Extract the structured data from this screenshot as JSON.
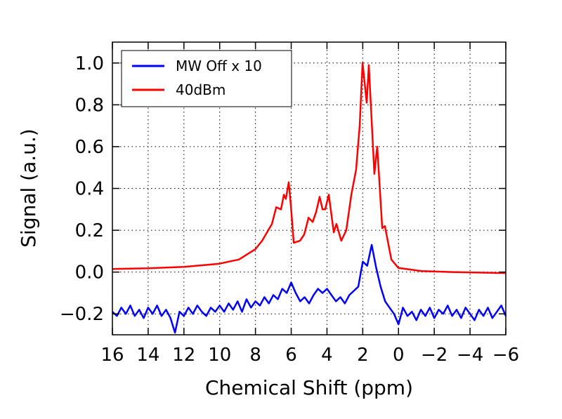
{
  "chart_data": {
    "type": "line",
    "title": "",
    "xlabel": "Chemical Shift (ppm)",
    "ylabel": "Signal (a.u.)",
    "xlim": [
      16,
      -6
    ],
    "ylim": [
      -0.3,
      1.1
    ],
    "x_reversed": true,
    "grid": true,
    "legend_placement": "top-left",
    "xticks": [
      16,
      14,
      12,
      10,
      8,
      6,
      4,
      2,
      0,
      -2,
      -4,
      -6
    ],
    "xtick_labels": [
      "16",
      "14",
      "12",
      "10",
      "8",
      "6",
      "4",
      "2",
      "0",
      "−2",
      "−4",
      "−6"
    ],
    "yticks": [
      -0.2,
      0.0,
      0.2,
      0.4,
      0.6,
      0.8,
      1.0
    ],
    "ytick_labels": [
      "−0.2",
      "0.0",
      "0.2",
      "0.4",
      "0.6",
      "0.8",
      "1.0"
    ],
    "series": [
      {
        "name": "MW Off x 10",
        "color": "#0000ff",
        "x": [
          16,
          15.75,
          15.5,
          15.25,
          15,
          14.75,
          14.5,
          14.25,
          14,
          13.75,
          13.5,
          13.25,
          13,
          12.75,
          12.5,
          12.25,
          12,
          11.75,
          11.5,
          11.25,
          11,
          10.75,
          10.5,
          10.25,
          10,
          9.75,
          9.5,
          9.25,
          9,
          8.75,
          8.5,
          8.25,
          8,
          7.75,
          7.5,
          7.25,
          7,
          6.75,
          6.5,
          6.25,
          6,
          5.75,
          5.5,
          5.25,
          5,
          4.75,
          4.5,
          4.25,
          4,
          3.75,
          3.5,
          3.25,
          3,
          2.75,
          2.5,
          2.25,
          2,
          1.75,
          1.5,
          1.25,
          1,
          0.75,
          0.5,
          0.25,
          0,
          -0.25,
          -0.5,
          -0.75,
          -1,
          -1.25,
          -1.5,
          -1.75,
          -2,
          -2.25,
          -2.5,
          -2.75,
          -3,
          -3.25,
          -3.5,
          -3.75,
          -4,
          -4.25,
          -4.5,
          -4.75,
          -5,
          -5.25,
          -5.5,
          -5.75,
          -6
        ],
        "y": [
          -0.19,
          -0.21,
          -0.17,
          -0.2,
          -0.16,
          -0.21,
          -0.18,
          -0.22,
          -0.17,
          -0.2,
          -0.16,
          -0.21,
          -0.18,
          -0.22,
          -0.29,
          -0.19,
          -0.21,
          -0.17,
          -0.2,
          -0.16,
          -0.19,
          -0.21,
          -0.17,
          -0.19,
          -0.16,
          -0.19,
          -0.15,
          -0.18,
          -0.14,
          -0.19,
          -0.13,
          -0.17,
          -0.14,
          -0.16,
          -0.12,
          -0.15,
          -0.11,
          -0.13,
          -0.08,
          -0.1,
          -0.05,
          -0.1,
          -0.14,
          -0.12,
          -0.15,
          -0.11,
          -0.08,
          -0.1,
          -0.08,
          -0.11,
          -0.14,
          -0.12,
          -0.15,
          -0.11,
          -0.09,
          -0.07,
          0.05,
          0.03,
          0.13,
          0.02,
          -0.07,
          -0.14,
          -0.17,
          -0.2,
          -0.25,
          -0.17,
          -0.21,
          -0.19,
          -0.23,
          -0.18,
          -0.21,
          -0.17,
          -0.22,
          -0.18,
          -0.2,
          -0.16,
          -0.21,
          -0.18,
          -0.22,
          -0.17,
          -0.2,
          -0.23,
          -0.18,
          -0.21,
          -0.17,
          -0.22,
          -0.19,
          -0.16,
          -0.21
        ]
      },
      {
        "name": "40dBm",
        "color": "#ff0000",
        "x": [
          16,
          14,
          12,
          10,
          9.5,
          8.93,
          8.0,
          7.63,
          7.08,
          6.84,
          6.57,
          6.41,
          6.3,
          6.14,
          6.02,
          5.86,
          5.51,
          5.27,
          5.03,
          4.8,
          4.6,
          4.41,
          4.25,
          4.1,
          3.9,
          3.62,
          3.47,
          3.2,
          2.92,
          2.64,
          2.37,
          2.17,
          2.01,
          1.78,
          1.66,
          1.35,
          1.19,
          0.91,
          0.76,
          0.4,
          0.01,
          -1.29,
          -3,
          -6
        ],
        "y": [
          0.015,
          0.018,
          0.025,
          0.04,
          0.05,
          0.06,
          0.11,
          0.15,
          0.23,
          0.31,
          0.3,
          0.37,
          0.35,
          0.43,
          0.32,
          0.14,
          0.15,
          0.18,
          0.26,
          0.24,
          0.29,
          0.36,
          0.3,
          0.3,
          0.37,
          0.19,
          0.23,
          0.15,
          0.2,
          0.37,
          0.49,
          0.7,
          1.0,
          0.81,
          0.99,
          0.47,
          0.6,
          0.21,
          0.22,
          0.06,
          0.02,
          0.005,
          0.0,
          -0.005
        ]
      }
    ]
  }
}
